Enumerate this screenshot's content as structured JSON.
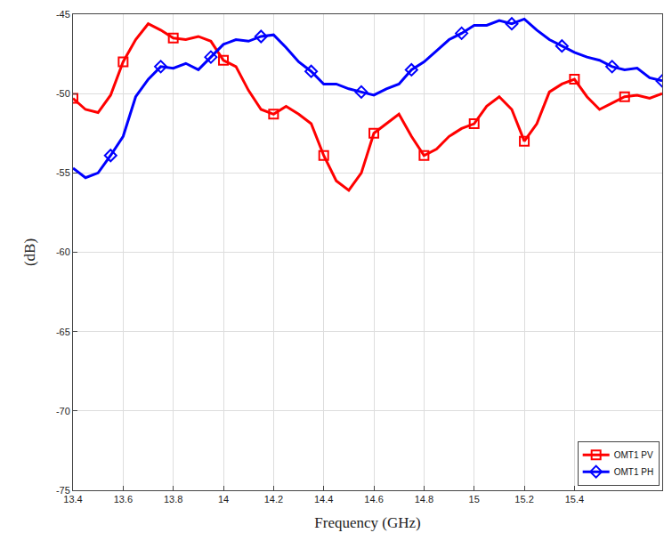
{
  "chart_data": {
    "type": "line",
    "xlabel": "Frequency (GHz)",
    "ylabel": "(dB)",
    "x": [
      13.4,
      13.45,
      13.5,
      13.55,
      13.6,
      13.65,
      13.7,
      13.75,
      13.8,
      13.85,
      13.9,
      13.95,
      14.0,
      14.05,
      14.1,
      14.15,
      14.2,
      14.25,
      14.3,
      14.35,
      14.4,
      14.45,
      14.5,
      14.55,
      14.6,
      14.65,
      14.7,
      14.75,
      14.8,
      14.85,
      14.9,
      14.95,
      15.0,
      15.05,
      15.1,
      15.15,
      15.2,
      15.25,
      15.3,
      15.35,
      15.4,
      15.45,
      15.5,
      15.55,
      15.6,
      15.65,
      15.7,
      15.75
    ],
    "series": [
      {
        "name": "OMT1 PV",
        "color": "#ff0000",
        "marker": "square",
        "values": [
          -50.3,
          -51.0,
          -51.2,
          -50.1,
          -48.0,
          -46.6,
          -45.6,
          -46.0,
          -46.5,
          -46.6,
          -46.4,
          -46.7,
          -47.9,
          -48.3,
          -49.8,
          -51.0,
          -51.3,
          -50.8,
          -51.3,
          -51.9,
          -53.9,
          -55.5,
          -56.1,
          -55.0,
          -52.5,
          -51.9,
          -51.3,
          -52.7,
          -53.9,
          -53.5,
          -52.7,
          -52.2,
          -51.9,
          -50.8,
          -50.2,
          -51.0,
          -53.0,
          -51.9,
          -49.9,
          -49.4,
          -49.1,
          -50.2,
          -51.0,
          -50.6,
          -50.2,
          -50.1,
          -50.3,
          -50.0
        ]
      },
      {
        "name": "OMT1 PH",
        "color": "#0000ff",
        "marker": "diamond",
        "values": [
          -54.7,
          -55.3,
          -55.0,
          -53.9,
          -52.7,
          -50.2,
          -49.1,
          -48.3,
          -48.4,
          -48.1,
          -48.5,
          -47.7,
          -46.9,
          -46.6,
          -46.7,
          -46.4,
          -46.3,
          -47.1,
          -48.0,
          -48.6,
          -49.4,
          -49.4,
          -49.7,
          -49.9,
          -50.1,
          -49.7,
          -49.4,
          -48.5,
          -48.0,
          -47.3,
          -46.6,
          -46.2,
          -45.7,
          -45.7,
          -45.4,
          -45.6,
          -45.3,
          -46.0,
          -46.6,
          -47.0,
          -47.4,
          -47.7,
          -47.9,
          -48.3,
          -48.5,
          -48.4,
          -49.0,
          -49.2
        ]
      }
    ],
    "xlim": [
      13.4,
      15.75
    ],
    "xticks": [
      13.4,
      13.6,
      13.8,
      14,
      14.2,
      14.4,
      14.6,
      14.8,
      15,
      15.2,
      15.4
    ],
    "ylim": [
      -75,
      -45
    ],
    "yticks": [
      -75,
      -70,
      -65,
      -60,
      -55,
      -50,
      -45
    ],
    "grid": true,
    "legend": "lower right"
  }
}
